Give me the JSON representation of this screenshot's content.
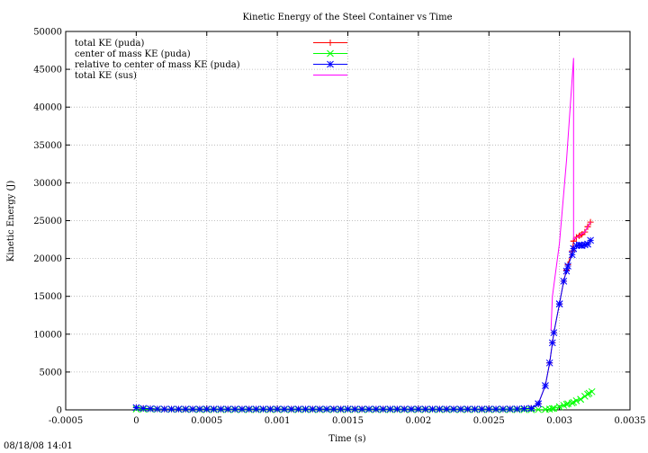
{
  "footer_timestamp": "08/18/08 14:01",
  "chart_data": {
    "type": "line",
    "title": "Kinetic Energy of the Steel Container vs Time",
    "xlabel": "Time (s)",
    "ylabel": "Kinetic Energy (J)",
    "xlim": [
      -0.0005,
      0.0035
    ],
    "ylim": [
      0,
      50000
    ],
    "grid": true,
    "legend_position": "top-left",
    "xticks": [
      "-0.0005",
      "0",
      "0.0005",
      "0.001",
      "0.0015",
      "0.002",
      "0.0025",
      "0.003",
      "0.0035"
    ],
    "yticks": [
      "0",
      "5000",
      "10000",
      "15000",
      "20000",
      "25000",
      "30000",
      "35000",
      "40000",
      "45000",
      "50000"
    ],
    "series": [
      {
        "name": "total KE (puda)",
        "color": "#ff0000",
        "marker": "plus",
        "points": [
          [
            0,
            300
          ],
          [
            5e-05,
            200
          ],
          [
            0.0001,
            150
          ],
          [
            0.0002,
            100
          ],
          [
            0.0005,
            100
          ],
          [
            0.001,
            100
          ],
          [
            0.0015,
            100
          ],
          [
            0.002,
            100
          ],
          [
            0.0025,
            100
          ],
          [
            0.0027,
            120
          ],
          [
            0.0028,
            200
          ],
          [
            0.00285,
            800
          ],
          [
            0.0029,
            3200
          ],
          [
            0.00293,
            6200
          ],
          [
            0.00296,
            10200
          ],
          [
            0.003,
            14000
          ],
          [
            0.00303,
            17000
          ],
          [
            0.00306,
            19200
          ],
          [
            0.00309,
            21000
          ],
          [
            0.0031,
            22300
          ],
          [
            0.00312,
            22800
          ],
          [
            0.00314,
            23000
          ],
          [
            0.00316,
            23200
          ],
          [
            0.00318,
            23500
          ],
          [
            0.0032,
            24200
          ],
          [
            0.00322,
            24800
          ]
        ]
      },
      {
        "name": "center of mass KE (puda)",
        "color": "#00ff00",
        "marker": "cross",
        "points": [
          [
            0,
            100
          ],
          [
            0.0005,
            20
          ],
          [
            0.001,
            20
          ],
          [
            0.002,
            20
          ],
          [
            0.0028,
            20
          ],
          [
            0.0029,
            50
          ],
          [
            0.00293,
            100
          ],
          [
            0.00296,
            200
          ],
          [
            0.003,
            400
          ],
          [
            0.00303,
            600
          ],
          [
            0.00306,
            800
          ],
          [
            0.00309,
            900
          ],
          [
            0.00312,
            1200
          ],
          [
            0.00315,
            1400
          ],
          [
            0.00318,
            1800
          ],
          [
            0.00321,
            2200
          ],
          [
            0.00323,
            2400
          ]
        ]
      },
      {
        "name": "relative to center of mass KE (puda)",
        "color": "#0000ff",
        "marker": "star",
        "points": [
          [
            0,
            300
          ],
          [
            5e-05,
            200
          ],
          [
            0.0001,
            150
          ],
          [
            0.0002,
            100
          ],
          [
            0.0005,
            100
          ],
          [
            0.001,
            100
          ],
          [
            0.0015,
            100
          ],
          [
            0.002,
            100
          ],
          [
            0.0025,
            100
          ],
          [
            0.0027,
            120
          ],
          [
            0.0028,
            200
          ],
          [
            0.00285,
            800
          ],
          [
            0.0029,
            3200
          ],
          [
            0.00293,
            6200
          ],
          [
            0.00296,
            10200
          ],
          [
            0.003,
            14000
          ],
          [
            0.00303,
            17000
          ],
          [
            0.00306,
            19000
          ],
          [
            0.00309,
            20500
          ],
          [
            0.0031,
            21300
          ],
          [
            0.00312,
            21700
          ],
          [
            0.00314,
            21800
          ],
          [
            0.00316,
            21700
          ],
          [
            0.00318,
            21800
          ],
          [
            0.0032,
            21900
          ],
          [
            0.00322,
            22400
          ]
        ]
      },
      {
        "name": "total KE (sus)",
        "color": "#ff00ff",
        "marker": "none",
        "points": [
          [
            0.00294,
            10500
          ],
          [
            0.00295,
            15000
          ],
          [
            0.003,
            22000
          ],
          [
            0.00305,
            33000
          ],
          [
            0.0031,
            46500
          ],
          [
            0.0031,
            22500
          ],
          [
            0.00314,
            23000
          ],
          [
            0.00318,
            23500
          ],
          [
            0.00322,
            24800
          ]
        ]
      }
    ]
  }
}
